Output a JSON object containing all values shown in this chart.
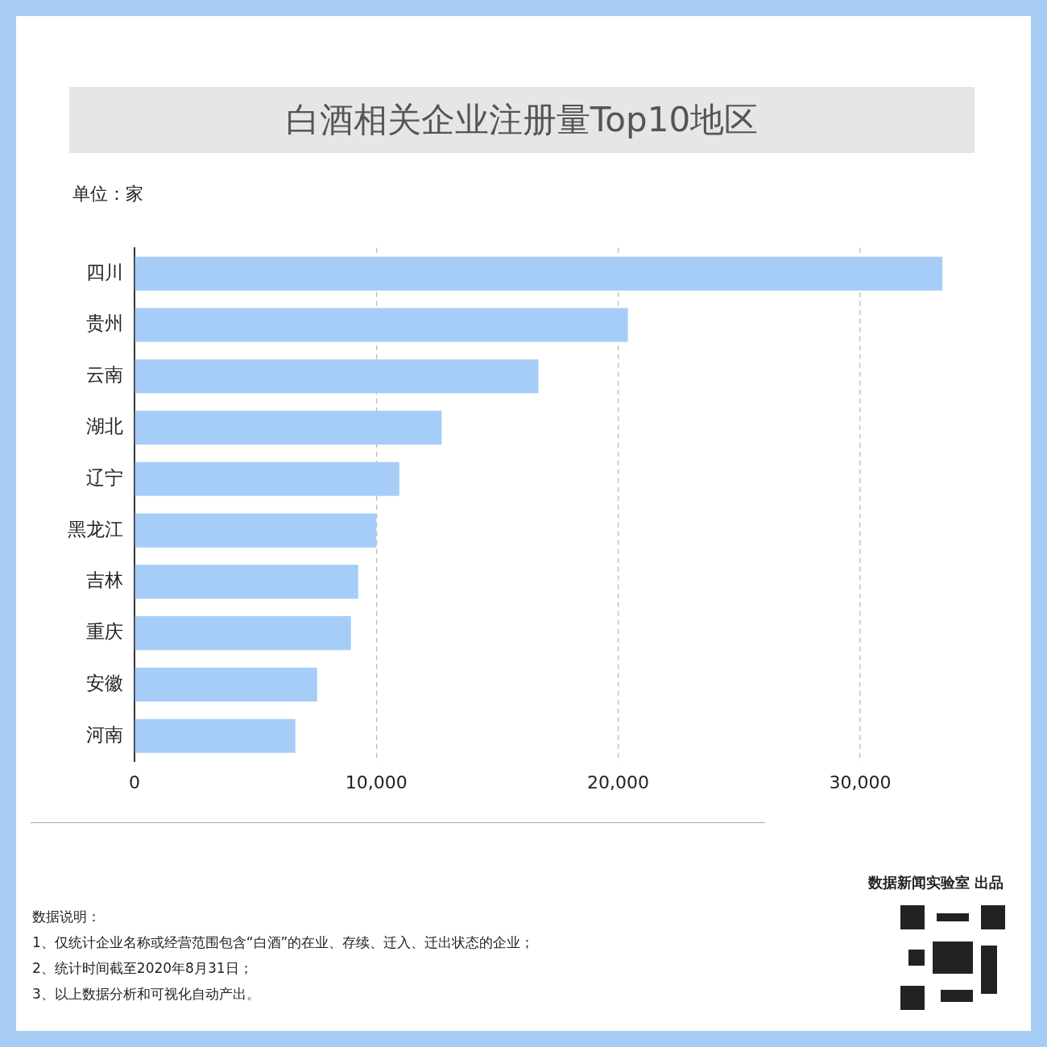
{
  "chart_data": {
    "type": "bar",
    "orientation": "horizontal",
    "title": "白酒相关企业注册量Top10地区",
    "categories": [
      "四川",
      "贵州",
      "云南",
      "湖北",
      "辽宁",
      "黑龙江",
      "吉林",
      "重庆",
      "安徽",
      "河南"
    ],
    "values": [
      33400,
      20400,
      16700,
      12700,
      10950,
      10000,
      9250,
      8950,
      7550,
      6650
    ],
    "color": "#a6cdf7",
    "xlim": [
      0,
      33400
    ],
    "xticks": [
      0,
      {
        "value": 10000,
        "label": "10,000"
      },
      {
        "value": 20000,
        "label": "20,000"
      },
      {
        "value": 30000,
        "label": "30,000"
      }
    ],
    "grid": "x",
    "legend": false,
    "annotations": [
      "单位：家",
      "数据说明：",
      "1、仅统计企业名称或经营范围包含“白酒”的在业、存续、迁入、迁出状态的企业；",
      "2、统计时间截至2020年8月31日；",
      "3、以上数据分析和可视化自动产出。",
      "数据新闻实验室 出品"
    ]
  }
}
